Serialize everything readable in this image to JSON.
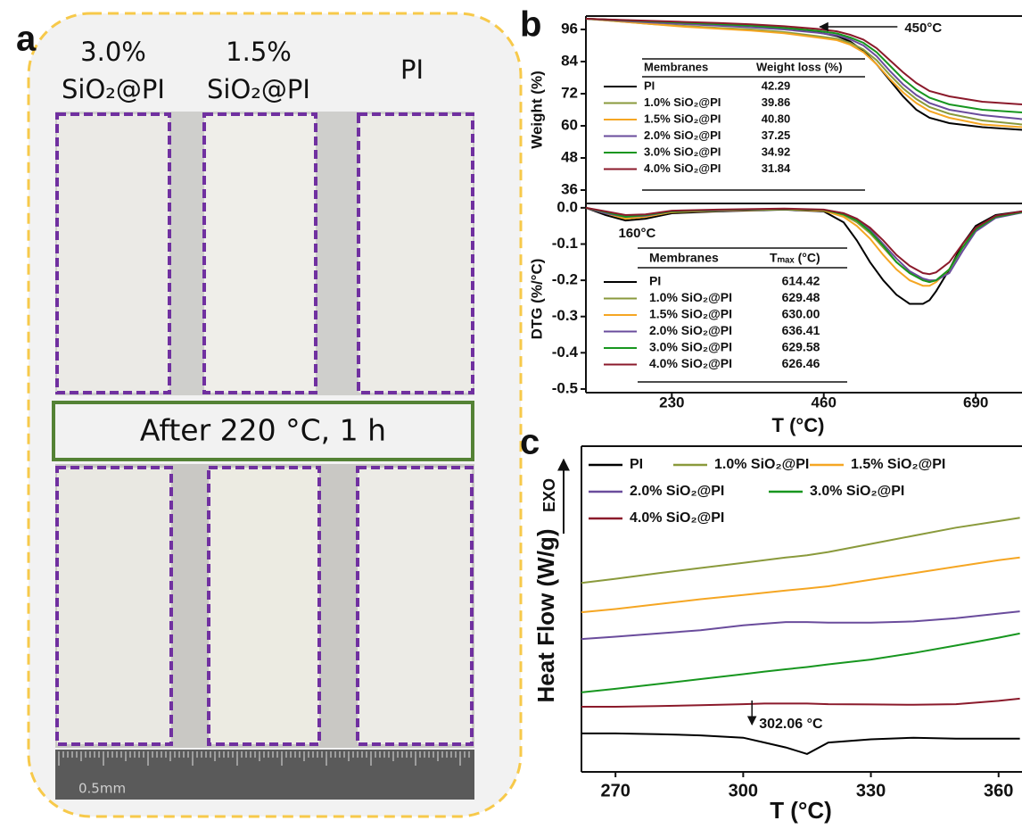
{
  "panel_a": {
    "label": "a",
    "columns": [
      [
        "3.0%",
        "SiO₂@PI"
      ],
      [
        "1.5%",
        "SiO₂@PI"
      ],
      [
        "PI"
      ]
    ],
    "caption": "After 220 °C, 1 h",
    "ruler_label": "0.5mm"
  },
  "chart_data": [
    {
      "type": "line",
      "panel_label": "b",
      "ylabel": "Weight  (%)",
      "x": [
        100,
        150,
        200,
        250,
        300,
        350,
        400,
        450,
        480,
        500,
        520,
        540,
        560,
        580,
        600,
        620,
        650,
        700,
        760
      ],
      "xlim": [
        100,
        760
      ],
      "ylim": [
        31,
        101
      ],
      "yticks": [
        36,
        48,
        60,
        72,
        84,
        96
      ],
      "table_header": [
        "Membranes",
        "Weight loss (%)"
      ],
      "annotations": [
        {
          "text": "450°C",
          "x": 450
        }
      ],
      "series": [
        {
          "name": "PI",
          "color": "#000000",
          "table_value": "42.29",
          "values": [
            100,
            99.5,
            99,
            98.5,
            98,
            97.5,
            96.5,
            95,
            93.5,
            91.5,
            88,
            83,
            77,
            71,
            66,
            63,
            61,
            59.5,
            58.5
          ]
        },
        {
          "name": "1.0% SiO₂@PI",
          "color": "#8a9a3c",
          "table_value": "39.86",
          "values": [
            100,
            99,
            98,
            97.3,
            96.6,
            96,
            95,
            93.5,
            92.5,
            91,
            88.5,
            84.5,
            79,
            74,
            70,
            67,
            64.5,
            62,
            60.5
          ]
        },
        {
          "name": "1.5% SiO₂@PI",
          "color": "#f5a623",
          "table_value": "40.80",
          "values": [
            100,
            99,
            98,
            97,
            96.3,
            95.6,
            94.6,
            93,
            92,
            90.3,
            87.5,
            83,
            77.5,
            72.5,
            68.5,
            65.5,
            63,
            60.5,
            59.5
          ]
        },
        {
          "name": "2.0% SiO₂@PI",
          "color": "#6a4c9c",
          "table_value": "37.25",
          "values": [
            100,
            99.3,
            98.6,
            98,
            97.4,
            96.8,
            96,
            94.8,
            93.8,
            92.3,
            90,
            86,
            80.5,
            75.5,
            71.5,
            68.5,
            66,
            64,
            62.5
          ]
        },
        {
          "name": "3.0% SiO₂@PI",
          "color": "#17961f",
          "table_value": "34.92",
          "values": [
            100,
            99.5,
            99,
            98.5,
            98,
            97.4,
            96.6,
            95.5,
            94.5,
            93,
            91,
            87.5,
            82.5,
            77.5,
            73.5,
            70.5,
            68,
            66,
            65
          ]
        },
        {
          "name": "4.0% SiO₂@PI",
          "color": "#8b1a2b",
          "table_value": "31.84",
          "values": [
            100,
            99.6,
            99.2,
            98.8,
            98.4,
            97.9,
            97.2,
            96.2,
            95.3,
            94,
            92.2,
            89,
            84.5,
            80,
            76,
            73,
            71,
            69,
            68
          ]
        }
      ]
    },
    {
      "type": "line",
      "ylabel": "DTG (%/°C)",
      "xlabel": "T (°C)",
      "x": [
        100,
        130,
        160,
        190,
        230,
        300,
        400,
        460,
        490,
        510,
        530,
        550,
        570,
        590,
        610,
        620,
        630,
        650,
        670,
        690,
        720,
        760
      ],
      "xlim": [
        100,
        760
      ],
      "ylim": [
        -0.51,
        0.012
      ],
      "xticks": [
        230,
        460,
        690
      ],
      "yticks": [
        {
          "value": 0,
          "label": "0.0"
        },
        -0.1,
        -0.2,
        -0.3,
        -0.4,
        -0.5
      ],
      "table_header": [
        "Membranes",
        "Tₘₐₓ (°C)"
      ],
      "annotations": [
        {
          "text": "160°C",
          "x": 160
        }
      ],
      "series": [
        {
          "name": "PI",
          "color": "#000000",
          "table_value": "614.42",
          "values": [
            0,
            -0.02,
            -0.035,
            -0.03,
            -0.015,
            -0.01,
            -0.005,
            -0.01,
            -0.04,
            -0.09,
            -0.15,
            -0.2,
            -0.24,
            -0.265,
            -0.265,
            -0.255,
            -0.23,
            -0.17,
            -0.1,
            -0.05,
            -0.02,
            -0.01
          ]
        },
        {
          "name": "1.0% SiO₂@PI",
          "color": "#8a9a3c",
          "table_value": "629.48",
          "values": [
            0,
            -0.015,
            -0.03,
            -0.025,
            -0.012,
            -0.008,
            -0.004,
            -0.008,
            -0.02,
            -0.04,
            -0.07,
            -0.11,
            -0.15,
            -0.18,
            -0.2,
            -0.205,
            -0.2,
            -0.17,
            -0.11,
            -0.06,
            -0.025,
            -0.012
          ]
        },
        {
          "name": "1.5% SiO₂@PI",
          "color": "#f5a623",
          "table_value": "630.00",
          "values": [
            0,
            -0.015,
            -0.03,
            -0.025,
            -0.012,
            -0.008,
            -0.004,
            -0.008,
            -0.025,
            -0.05,
            -0.085,
            -0.13,
            -0.17,
            -0.2,
            -0.215,
            -0.215,
            -0.205,
            -0.17,
            -0.11,
            -0.06,
            -0.025,
            -0.012
          ]
        },
        {
          "name": "2.0% SiO₂@PI",
          "color": "#6a4c9c",
          "table_value": "636.41",
          "values": [
            0,
            -0.015,
            -0.025,
            -0.022,
            -0.01,
            -0.007,
            -0.003,
            -0.006,
            -0.015,
            -0.03,
            -0.06,
            -0.1,
            -0.14,
            -0.175,
            -0.195,
            -0.2,
            -0.2,
            -0.18,
            -0.12,
            -0.065,
            -0.028,
            -0.013
          ]
        },
        {
          "name": "3.0% SiO₂@PI",
          "color": "#17961f",
          "table_value": "629.58",
          "values": [
            0,
            -0.012,
            -0.025,
            -0.02,
            -0.01,
            -0.006,
            -0.003,
            -0.006,
            -0.018,
            -0.035,
            -0.065,
            -0.105,
            -0.15,
            -0.18,
            -0.2,
            -0.205,
            -0.2,
            -0.17,
            -0.11,
            -0.06,
            -0.025,
            -0.012
          ]
        },
        {
          "name": "4.0% SiO₂@PI",
          "color": "#8b1a2b",
          "table_value": "626.46",
          "values": [
            0,
            -0.01,
            -0.02,
            -0.018,
            -0.008,
            -0.005,
            -0.002,
            -0.005,
            -0.015,
            -0.03,
            -0.055,
            -0.09,
            -0.13,
            -0.16,
            -0.18,
            -0.183,
            -0.178,
            -0.15,
            -0.1,
            -0.055,
            -0.022,
            -0.01
          ]
        }
      ]
    },
    {
      "type": "line",
      "panel_label": "c",
      "ylabel": "Heat Flow (W/g)",
      "xlabel": "T (°C)",
      "exo_label": "EXO",
      "x": [
        262,
        270,
        280,
        290,
        300,
        305,
        310,
        315,
        320,
        330,
        340,
        350,
        360,
        365
      ],
      "xlim": [
        262,
        365.5
      ],
      "ylim": [
        0,
        100
      ],
      "xticks": [
        270,
        300,
        330,
        360
      ],
      "annotations": [
        {
          "text": "302.06 °C",
          "x": 302.06
        }
      ],
      "series": [
        {
          "name": "PI",
          "color": "#000000",
          "values": [
            11.8,
            11.8,
            11.6,
            11.2,
            10.5,
            9,
            7.5,
            5.5,
            9,
            10,
            10.5,
            10.2,
            10.2,
            10.2
          ]
        },
        {
          "name": "1.0% SiO₂@PI",
          "color": "#8a9a3c",
          "values": [
            58,
            59.3,
            61,
            62.6,
            64.2,
            65,
            65.8,
            66.5,
            67.5,
            70,
            72.5,
            75,
            77,
            78
          ]
        },
        {
          "name": "1.5% SiO₂@PI",
          "color": "#f5a623",
          "values": [
            49,
            50,
            51.5,
            53,
            54.3,
            55,
            55.7,
            56.3,
            57,
            59,
            61,
            63,
            65,
            65.8
          ]
        },
        {
          "name": "2.0% SiO₂@PI",
          "color": "#6a4c9c",
          "values": [
            40.8,
            41.5,
            42.5,
            43.5,
            45,
            45.5,
            46,
            46,
            45.8,
            45.8,
            46.2,
            47.2,
            48.6,
            49.3
          ]
        },
        {
          "name": "3.0% SiO₂@PI",
          "color": "#17961f",
          "values": [
            24.4,
            25.5,
            27,
            28.5,
            30,
            30.8,
            31.5,
            32.2,
            33,
            34.5,
            36.5,
            38.8,
            41.2,
            42.5
          ]
        },
        {
          "name": "4.0% SiO₂@PI",
          "color": "#8b1a2b",
          "values": [
            20,
            20,
            20.2,
            20.5,
            20.8,
            21,
            21,
            21,
            20.8,
            20.7,
            20.6,
            20.8,
            21.8,
            22.5
          ]
        }
      ]
    }
  ]
}
